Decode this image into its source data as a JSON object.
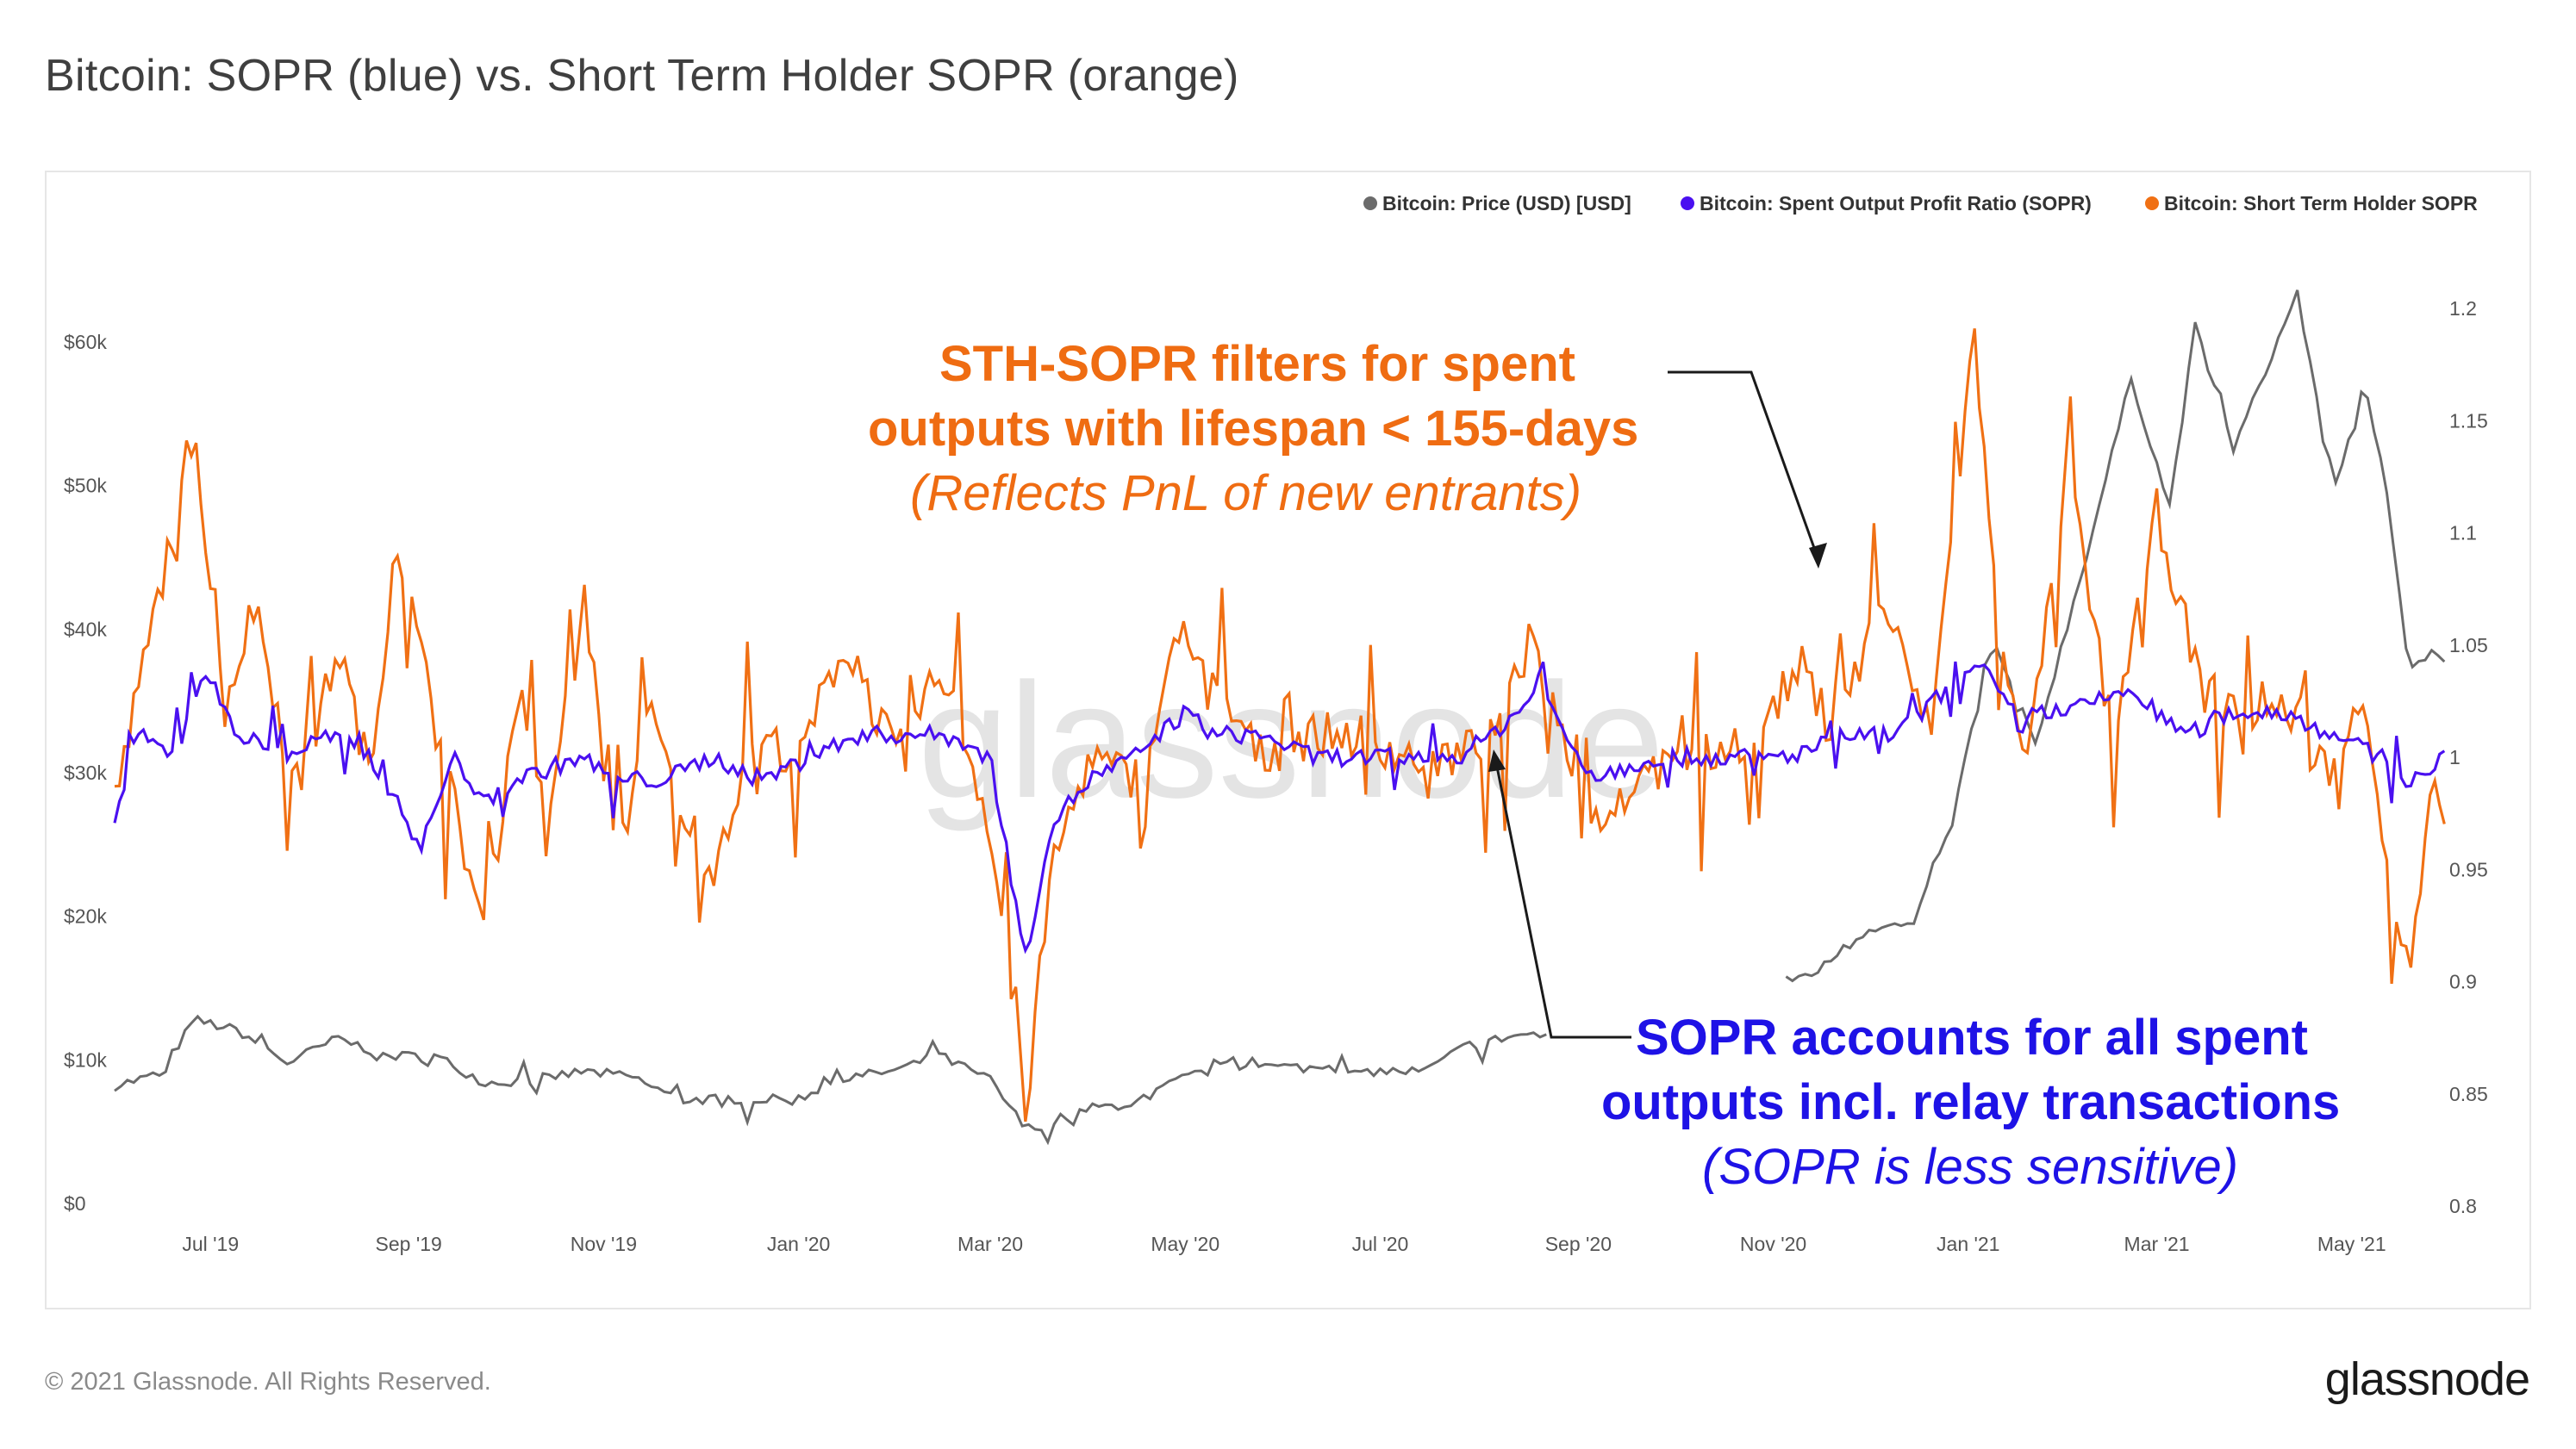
{
  "title": "Bitcoin: SOPR (blue) vs. Short Term Holder SOPR (orange)",
  "footer": {
    "copyright": "© 2021 Glassnode. All Rights Reserved.",
    "logo": "glassnode"
  },
  "watermark": "glassnode",
  "colors": {
    "price": "#6b6b6b",
    "sopr": "#4a10f0",
    "sth_sopr": "#f07014",
    "annotation_orange": "#ef6c12",
    "annotation_blue": "#1e12e6"
  },
  "annotations": {
    "sth": {
      "line1": "STH-SOPR filters for spent",
      "line2": "outputs with lifespan < 155-days",
      "line3": "(Reflects PnL of new entrants)"
    },
    "sopr": {
      "line1": "SOPR accounts for all spent",
      "line2": "outputs incl. relay transactions",
      "line3": "(SOPR is less sensitive)"
    }
  },
  "chart_data": {
    "type": "line",
    "legend_position": "top-right",
    "grid": false,
    "x_range": [
      "2019-06-01",
      "2021-05-31"
    ],
    "x_ticks": [
      "Jul '19",
      "Sep '19",
      "Nov '19",
      "Jan '20",
      "Mar '20",
      "May '20",
      "Jul '20",
      "Sep '20",
      "Nov '20",
      "Jan '21",
      "Mar '21",
      "May '21"
    ],
    "y_left": {
      "ticks": [
        "$0",
        "$10k",
        "$20k",
        "$30k",
        "$40k",
        "$50k",
        "$60k"
      ],
      "range": [
        0,
        60000
      ]
    },
    "y_right": {
      "ticks": [
        "0.8",
        "0.85",
        "0.9",
        "0.95",
        "1",
        "1.05",
        "1.1",
        "1.15",
        "1.2"
      ],
      "range": [
        0.8,
        1.2
      ]
    },
    "series": [
      {
        "name": "Bitcoin: Price (USD) [USD]",
        "axis": "left",
        "segments": [
          {
            "x": [
              "2019-06-01",
              "2019-06-15",
              "2019-06-26",
              "2019-07-10",
              "2019-07-25",
              "2019-08-10",
              "2019-08-25",
              "2019-09-10",
              "2019-09-25",
              "2019-10-10",
              "2019-10-26",
              "2019-11-10",
              "2019-11-25",
              "2019-12-10",
              "2019-12-31",
              "2020-01-15",
              "2020-02-01",
              "2020-02-14",
              "2020-03-01",
              "2020-03-12",
              "2020-03-15",
              "2020-04-01",
              "2020-04-15",
              "2020-05-01",
              "2020-05-15",
              "2020-06-01",
              "2020-06-15",
              "2020-07-01",
              "2020-07-15",
              "2020-07-28",
              "2020-08-15",
              "2020-08-22"
            ],
            "y": [
              8200,
              9000,
              12800,
              12000,
              9800,
              11500,
              10300,
              10200,
              8400,
              8600,
              9200,
              8800,
              7200,
              7300,
              7200,
              8700,
              9300,
              10300,
              8600,
              5200,
              5300,
              6600,
              7000,
              8800,
              9600,
              9500,
              9400,
              9200,
              9200,
              11000,
              11800,
              11700
            ]
          },
          {
            "x": [
              "2020-11-05",
              "2020-11-15",
              "2020-12-01",
              "2020-12-15",
              "2020-12-27",
              "2021-01-08",
              "2021-01-22",
              "2021-02-08",
              "2021-02-21",
              "2021-03-05",
              "2021-03-13",
              "2021-03-25",
              "2021-04-05",
              "2021-04-14",
              "2021-04-25",
              "2021-05-05",
              "2021-05-12",
              "2021-05-19",
              "2021-05-26",
              "2021-05-31"
            ],
            "y": [
              15500,
              16200,
              19200,
              19400,
              26500,
              39500,
              32000,
              46000,
              57500,
              48500,
              61000,
              52500,
              58500,
              63500,
              49500,
              57000,
              49800,
              37000,
              38500,
              37500
            ]
          }
        ]
      },
      {
        "name": "Bitcoin: Spent Output Profit Ratio (SOPR)",
        "axis": "right",
        "x": [
          "2019-06-01",
          "2019-06-08",
          "2019-06-20",
          "2019-06-29",
          "2019-07-10",
          "2019-07-25",
          "2019-08-06",
          "2019-08-20",
          "2019-09-05",
          "2019-09-15",
          "2019-09-25",
          "2019-10-05",
          "2019-10-25",
          "2019-11-05",
          "2019-11-20",
          "2019-12-05",
          "2019-12-20",
          "2020-01-05",
          "2020-01-20",
          "2020-02-05",
          "2020-02-15",
          "2020-03-01",
          "2020-03-12",
          "2020-03-20",
          "2020-04-01",
          "2020-04-15",
          "2020-05-01",
          "2020-05-10",
          "2020-05-25",
          "2020-06-10",
          "2020-06-25",
          "2020-07-10",
          "2020-07-25",
          "2020-08-05",
          "2020-08-20",
          "2020-09-05",
          "2020-09-25",
          "2020-10-15",
          "2020-11-05",
          "2020-11-25",
          "2020-12-10",
          "2020-12-25",
          "2021-01-05",
          "2021-01-15",
          "2021-02-01",
          "2021-02-20",
          "2021-03-10",
          "2021-03-25",
          "2021-04-10",
          "2021-04-25",
          "2021-05-10",
          "2021-05-20",
          "2021-05-31"
        ],
        "y": [
          0.97,
          1.01,
          1.0,
          1.04,
          1.01,
          1.0,
          1.01,
          1.0,
          0.96,
          1.0,
          0.98,
          0.99,
          1.0,
          0.99,
          0.99,
          1.0,
          0.99,
          1.0,
          1.01,
          1.01,
          1.01,
          1.0,
          0.91,
          0.97,
          0.99,
          1.0,
          1.02,
          1.01,
          1.01,
          1.0,
          1.0,
          1.0,
          1.0,
          1.01,
          1.03,
          0.99,
          1.0,
          1.0,
          1.0,
          1.01,
          1.01,
          1.03,
          1.04,
          1.02,
          1.02,
          1.03,
          1.01,
          1.02,
          1.02,
          1.01,
          1.0,
          0.99,
          1.0
        ]
      },
      {
        "name": "Bitcoin: Short Term Holder SOPR",
        "axis": "right",
        "x": [
          "2019-06-01",
          "2019-06-10",
          "2019-06-26",
          "2019-07-05",
          "2019-07-15",
          "2019-07-28",
          "2019-08-10",
          "2019-08-20",
          "2019-08-28",
          "2019-09-10",
          "2019-09-25",
          "2019-10-05",
          "2019-10-15",
          "2019-10-26",
          "2019-11-05",
          "2019-11-15",
          "2019-11-25",
          "2019-12-05",
          "2019-12-18",
          "2020-01-01",
          "2020-01-15",
          "2020-02-01",
          "2020-02-15",
          "2020-03-01",
          "2020-03-12",
          "2020-03-20",
          "2020-04-01",
          "2020-04-15",
          "2020-05-01",
          "2020-05-10",
          "2020-05-25",
          "2020-06-10",
          "2020-06-25",
          "2020-07-10",
          "2020-07-25",
          "2020-08-05",
          "2020-08-18",
          "2020-09-05",
          "2020-09-20",
          "2020-10-10",
          "2020-10-25",
          "2020-11-10",
          "2020-11-20",
          "2020-12-05",
          "2020-12-20",
          "2021-01-03",
          "2021-01-10",
          "2021-01-20",
          "2021-02-01",
          "2021-02-15",
          "2021-03-01",
          "2021-03-15",
          "2021-04-01",
          "2021-04-15",
          "2021-04-25",
          "2021-05-05",
          "2021-05-12",
          "2021-05-19",
          "2021-05-26",
          "2021-05-31"
        ],
        "y": [
          0.98,
          1.04,
          1.15,
          1.02,
          1.07,
          0.98,
          1.05,
          0.99,
          1.1,
          1.01,
          0.92,
          1.03,
          0.98,
          1.07,
          0.95,
          1.02,
          0.98,
          0.95,
          1.01,
          1.0,
          1.05,
          1.0,
          1.04,
          0.97,
          0.84,
          0.95,
          1.0,
          0.99,
          1.06,
          1.03,
          1.0,
          1.01,
          1.01,
          1.0,
          1.0,
          1.01,
          1.05,
          0.97,
          0.99,
          1.0,
          1.01,
          1.04,
          1.01,
          1.07,
          1.01,
          1.19,
          1.06,
          1.0,
          1.13,
          1.01,
          1.11,
          1.03,
          1.02,
          1.02,
          0.99,
          1.03,
          0.95,
          0.9,
          0.98,
          0.98
        ]
      }
    ]
  }
}
